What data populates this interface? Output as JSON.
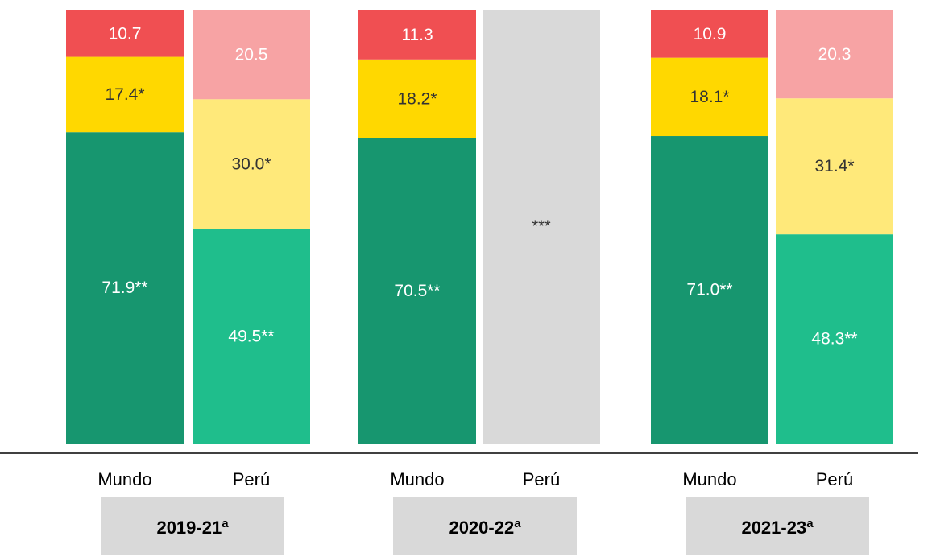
{
  "chart_data": {
    "type": "stacked_bar",
    "categories": [
      "Mundo",
      "Perú",
      "Mundo",
      "Perú",
      "Mundo",
      "Perú"
    ],
    "groups": [
      {
        "label": "2019-21",
        "sup": "a"
      },
      {
        "label": "2020-22",
        "sup": "a"
      },
      {
        "label": "2021-23",
        "sup": "a"
      }
    ],
    "ylim": [
      0,
      100
    ],
    "series": [
      {
        "values": [
          71.9,
          49.5,
          70.5,
          null,
          71.0,
          48.3
        ],
        "value_labels": [
          "71.9**",
          "49.5**",
          "70.5**",
          null,
          "71.0**",
          "48.3**"
        ],
        "colors": [
          "#17966f",
          "#1fbe8c",
          "#17966f",
          null,
          "#17966f",
          "#1fbe8c"
        ],
        "label_color": "#ffffff"
      },
      {
        "values": [
          17.4,
          30.0,
          18.2,
          null,
          18.1,
          31.4
        ],
        "value_labels": [
          "17.4*",
          "30.0*",
          "18.2*",
          null,
          "18.1*",
          "31.4*"
        ],
        "colors": [
          "#ffd800",
          "#ffe97a",
          "#ffd800",
          null,
          "#ffd800",
          "#ffe97a"
        ],
        "label_color": "#333333"
      },
      {
        "values": [
          10.7,
          20.5,
          11.3,
          null,
          10.9,
          20.3
        ],
        "colors": [
          "#f04f52",
          "#f7a3a4",
          "#f04f52",
          null,
          "#f04f52",
          "#f7a3a4"
        ],
        "label_color": "#ffffff"
      }
    ],
    "missing": {
      "label": "***",
      "color": "#d9d9d9"
    }
  }
}
